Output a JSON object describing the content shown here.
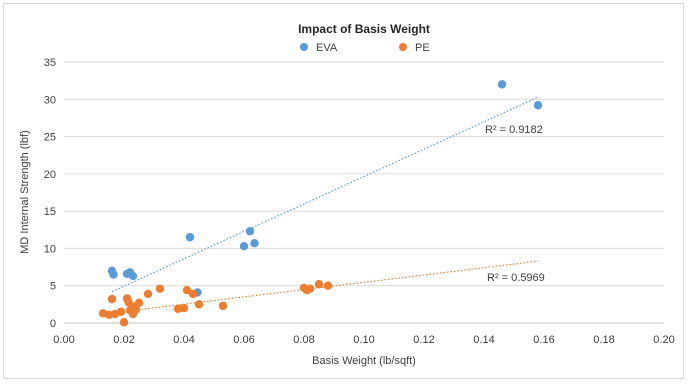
{
  "chart_data": {
    "type": "scatter",
    "title": "Impact of Basis Weight",
    "xlabel": "Basis Weight (lb/sqft)",
    "ylabel": "MD Internal Strength (lbf)",
    "xlim": [
      0,
      0.2
    ],
    "ylim": [
      0,
      35
    ],
    "x_ticks": [
      "0.00",
      "0.02",
      "0.04",
      "0.06",
      "0.08",
      "0.10",
      "0.12",
      "0.14",
      "0.16",
      "0.18",
      "0.20"
    ],
    "y_ticks": [
      "0",
      "5",
      "10",
      "15",
      "20",
      "25",
      "30",
      "35"
    ],
    "grid": true,
    "legend_position": "top",
    "series": [
      {
        "name": "EVA",
        "color": "#5b9bd5",
        "points": [
          [
            0.016,
            7.0
          ],
          [
            0.0165,
            6.5
          ],
          [
            0.021,
            6.6
          ],
          [
            0.022,
            6.8
          ],
          [
            0.023,
            6.3
          ],
          [
            0.042,
            11.5
          ],
          [
            0.0445,
            4.1
          ],
          [
            0.06,
            10.3
          ],
          [
            0.062,
            12.3
          ],
          [
            0.0635,
            10.7
          ],
          [
            0.146,
            32.0
          ],
          [
            0.158,
            29.2
          ]
        ],
        "trendline": {
          "x": [
            0.016,
            0.158
          ],
          "y": [
            4.2,
            30.3
          ]
        },
        "r2_label": "R² = 0.9182"
      },
      {
        "name": "PE",
        "color": "#ed7d31",
        "points": [
          [
            0.013,
            1.3
          ],
          [
            0.015,
            1.1
          ],
          [
            0.016,
            3.2
          ],
          [
            0.017,
            1.2
          ],
          [
            0.019,
            1.5
          ],
          [
            0.02,
            0.1
          ],
          [
            0.021,
            3.3
          ],
          [
            0.0215,
            2.8
          ],
          [
            0.022,
            1.7
          ],
          [
            0.023,
            1.2
          ],
          [
            0.0235,
            2.2
          ],
          [
            0.024,
            1.8
          ],
          [
            0.025,
            2.7
          ],
          [
            0.028,
            3.9
          ],
          [
            0.032,
            4.6
          ],
          [
            0.038,
            1.9
          ],
          [
            0.04,
            2.0
          ],
          [
            0.041,
            4.4
          ],
          [
            0.043,
            3.9
          ],
          [
            0.045,
            2.5
          ],
          [
            0.053,
            2.3
          ],
          [
            0.08,
            4.7
          ],
          [
            0.081,
            4.4
          ],
          [
            0.082,
            4.6
          ],
          [
            0.085,
            5.2
          ],
          [
            0.088,
            5.0
          ]
        ],
        "trendline": {
          "x": [
            0.013,
            0.158
          ],
          "y": [
            1.2,
            8.3
          ]
        },
        "r2_label": "R² = 0.5969"
      }
    ]
  }
}
